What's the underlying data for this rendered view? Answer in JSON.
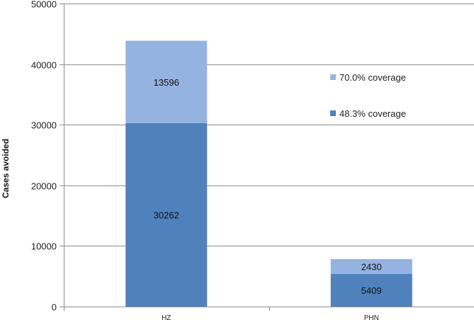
{
  "chart_data": {
    "type": "bar",
    "stacked": true,
    "categories": [
      "HZ",
      "PHN"
    ],
    "series": [
      {
        "name": "48.3% coverage",
        "values": [
          30262,
          5409
        ],
        "color": "#4f81bd"
      },
      {
        "name": "70.0% coverage",
        "values": [
          13596,
          2430
        ],
        "color": "#95b3e1"
      }
    ],
    "xlabel": "",
    "ylabel": "Cases avoided",
    "ylim": [
      0,
      50000
    ],
    "yticks": [
      0,
      10000,
      20000,
      30000,
      40000,
      50000
    ],
    "grid": true,
    "legend": {
      "position": "right",
      "order": [
        "70.0% coverage",
        "48.3% coverage"
      ]
    }
  }
}
